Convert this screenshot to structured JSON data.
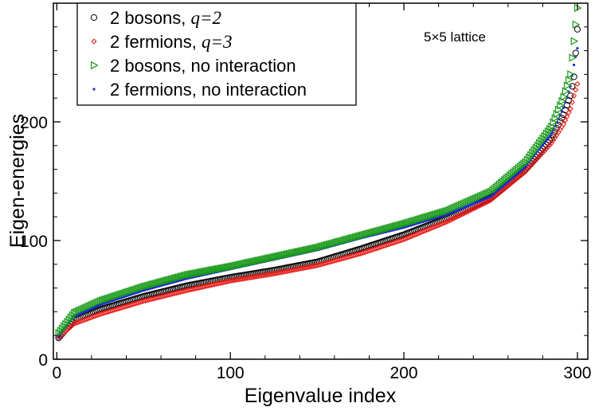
{
  "chart_data": {
    "type": "scatter",
    "xlabel": "Eigenvalue index",
    "ylabel": "Eigen-energies",
    "xlim": [
      -2,
      306
    ],
    "ylim": [
      0,
      300
    ],
    "xticks": [
      0,
      100,
      200,
      300
    ],
    "yticks": [
      0,
      100,
      200
    ],
    "annotation": "5×5 lattice",
    "legend_position": "top-left",
    "series": [
      {
        "name": "2 bosons, q=2",
        "legend_main": "2 bosons, ",
        "legend_q": "q=2",
        "marker": "circle",
        "color": "#000000",
        "x": [
          1,
          10,
          25,
          50,
          75,
          100,
          125,
          150,
          175,
          200,
          225,
          250,
          270,
          285,
          292,
          296,
          298,
          300
        ],
        "y": [
          18,
          33,
          42,
          53,
          62,
          69,
          75,
          82,
          93,
          105,
          119,
          136,
          160,
          186,
          206,
          222,
          238,
          278
        ]
      },
      {
        "name": "2 fermions, q=3",
        "legend_main": "2 fermions, ",
        "legend_q": "q=3",
        "marker": "diamond",
        "color": "#e8201c",
        "x": [
          1,
          10,
          25,
          50,
          75,
          100,
          125,
          150,
          175,
          200,
          225,
          250,
          270,
          285,
          292,
          296,
          298,
          300
        ],
        "y": [
          18,
          30,
          38,
          49,
          58,
          66,
          72,
          79,
          89,
          101,
          116,
          134,
          158,
          182,
          198,
          211,
          222,
          232
        ]
      },
      {
        "name": "2 bosons, no interaction",
        "legend_main": "2 bosons, no interaction",
        "legend_q": "",
        "marker": "triangle-right",
        "color": "#1a9a1a",
        "x": [
          1,
          10,
          25,
          50,
          75,
          100,
          125,
          150,
          175,
          200,
          225,
          250,
          270,
          285,
          292,
          296,
          298,
          300
        ],
        "y": [
          22,
          39,
          49,
          61,
          71,
          78,
          86,
          94,
          104,
          114,
          125,
          141,
          166,
          196,
          221,
          240,
          268,
          296
        ]
      },
      {
        "name": "2 fermions, no interaction",
        "legend_main": "2 fermions, no interaction",
        "legend_q": "",
        "marker": "dot",
        "color": "#1c2ad8",
        "x": [
          1,
          10,
          25,
          50,
          75,
          100,
          125,
          150,
          175,
          200,
          225,
          250,
          270,
          285,
          292,
          296,
          298,
          300
        ],
        "y": [
          19,
          36,
          46,
          58,
          68,
          76,
          84,
          92,
          102,
          111,
          122,
          137,
          162,
          190,
          212,
          230,
          248,
          262
        ]
      }
    ]
  }
}
